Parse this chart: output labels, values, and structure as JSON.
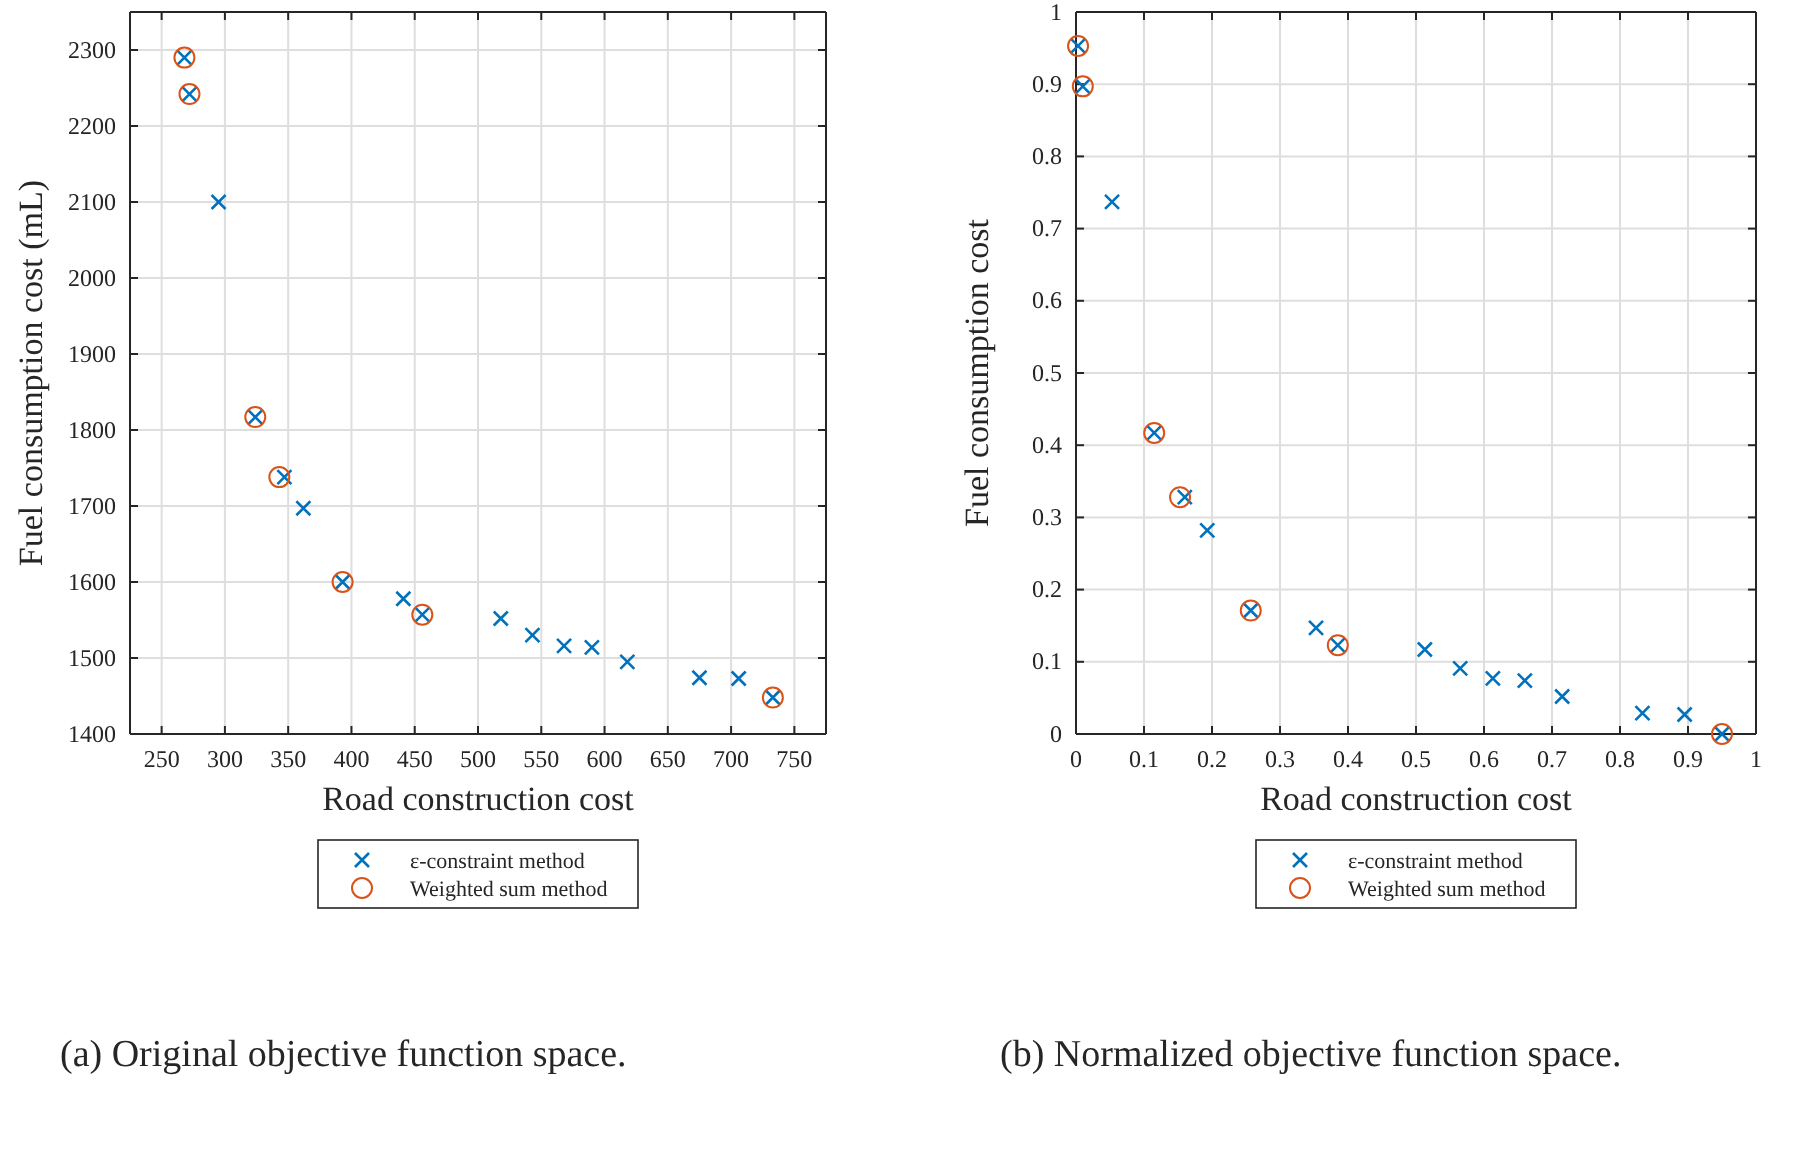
{
  "chart_data": [
    {
      "type": "scatter",
      "xlabel": "Road construction cost",
      "ylabel": "Fuel consumption cost (mL)",
      "xlim": [
        225,
        775
      ],
      "xticks": [
        250,
        300,
        350,
        400,
        450,
        500,
        550,
        600,
        650,
        700,
        750
      ],
      "ylim": [
        1400,
        2350
      ],
      "yticks": [
        1400,
        1500,
        1600,
        1700,
        1800,
        1900,
        2000,
        2100,
        2200,
        2300
      ],
      "grid": true,
      "legend": "bottom",
      "annotations": [
        "(a) Original objective function space."
      ],
      "series": [
        {
          "name": "ε-constraint method",
          "color": "#0072bd",
          "marker": "cross",
          "x": [
            268,
            272,
            295,
            324,
            347,
            362,
            393,
            441,
            456,
            518,
            543,
            568,
            590,
            618,
            675,
            706,
            733
          ],
          "values": [
            2290,
            2242,
            2100,
            1817,
            1738,
            1697,
            1600,
            1578,
            1557,
            1552,
            1530,
            1516,
            1514,
            1495,
            1474,
            1473,
            1448
          ]
        },
        {
          "name": "Weighted sum method",
          "color": "#d95319",
          "marker": "circle",
          "x": [
            268,
            272,
            324,
            343,
            393,
            456,
            733
          ],
          "values": [
            2290,
            2242,
            1817,
            1738,
            1600,
            1557,
            1448
          ]
        }
      ]
    },
    {
      "type": "scatter",
      "xlabel": "Road construction cost",
      "ylabel": "Fuel consumption cost",
      "xlim": [
        0,
        1
      ],
      "xticks": [
        0,
        0.1,
        0.2,
        0.3,
        0.4,
        0.5,
        0.6,
        0.7,
        0.8,
        0.9,
        1
      ],
      "ylim": [
        0,
        1
      ],
      "yticks": [
        0,
        0.1,
        0.2,
        0.3,
        0.4,
        0.5,
        0.6,
        0.7,
        0.8,
        0.9,
        1
      ],
      "grid": true,
      "legend": "bottom",
      "annotations": [
        "(b) Normalized objective function space."
      ],
      "series": [
        {
          "name": "ε-constraint method",
          "color": "#0072bd",
          "marker": "cross",
          "x": [
            0.003,
            0.01,
            0.053,
            0.115,
            0.16,
            0.193,
            0.257,
            0.353,
            0.385,
            0.513,
            0.565,
            0.613,
            0.66,
            0.715,
            0.833,
            0.895,
            0.95
          ],
          "values": [
            0.953,
            0.897,
            0.737,
            0.417,
            0.328,
            0.282,
            0.171,
            0.147,
            0.123,
            0.117,
            0.091,
            0.077,
            0.074,
            0.052,
            0.029,
            0.027,
            0
          ]
        },
        {
          "name": "Weighted sum method",
          "color": "#d95319",
          "marker": "circle",
          "x": [
            0.003,
            0.01,
            0.115,
            0.153,
            0.257,
            0.385,
            0.95
          ],
          "values": [
            0.953,
            0.897,
            0.417,
            0.328,
            0.171,
            0.123,
            0
          ]
        }
      ]
    }
  ]
}
